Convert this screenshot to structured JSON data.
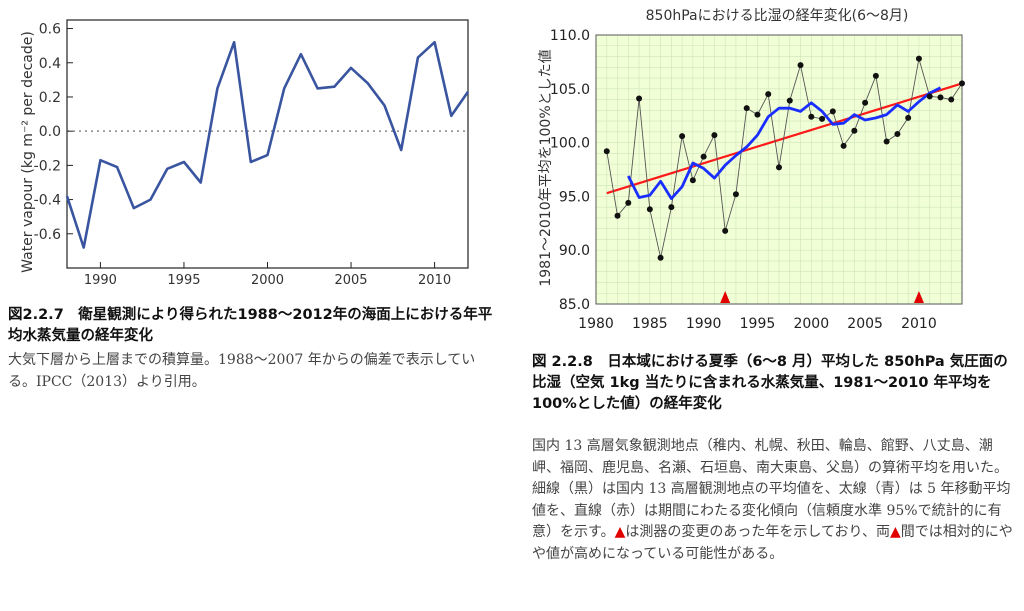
{
  "left_caption": {
    "title": "図2.2.7　衛星観測により得られた1988～2012年の海面上における年平均水蒸気量の経年変化",
    "body": "大気下層から上層までの積算量。1988～2007 年からの偏差で表示している。IPCC（2013）より引用。"
  },
  "right_caption": {
    "title": "図 2.2.8　日本域における夏季（6～8 月）平均した 850hPa 気圧面の比湿（空気 1kg 当たりに含まれる水蒸気量、1981～2010 年平均を 100%とした値）の経年変化",
    "body_part1": "国内 13 高層気象観測地点（稚内、札幌、秋田、輪島、館野、八丈島、潮岬、福岡、鹿児島、名瀬、石垣島、南大東島、父島）の算術平均を用いた。細線（黒）は国内 13 高層観測地点の平均値を、太線（青）は 5 年移動平均値を、直線（赤）は期間にわたる変化傾向（信頼度水準 95%で統計的に有意）を示す。",
    "marker_symbol": "▲",
    "body_part2": "は測器の変更のあった年を示しており、両",
    "body_part3": "間では相対的にやや値が高めになっている可能性がある。"
  },
  "chart_data": [
    {
      "type": "line",
      "title": "",
      "xlabel": "",
      "ylabel": "Water vapour (kg m⁻² per decade)",
      "xlim": [
        1988,
        2012
      ],
      "ylim": [
        -0.8,
        0.65
      ],
      "xticks": [
        1990,
        1995,
        2000,
        2005,
        2010
      ],
      "yticks": [
        -0.6,
        -0.4,
        -0.2,
        0.0,
        0.2,
        0.4,
        0.6
      ],
      "ytick_labels": [
        "-0.6",
        "-0.4",
        "-0.2",
        "0.0",
        "0.2",
        "0.4",
        "0.6"
      ],
      "reference_line": 0.0,
      "grid": false,
      "line_color": "#3a55a0",
      "series": [
        {
          "x": [
            1988,
            1989,
            1990,
            1991,
            1992,
            1993,
            1994,
            1995,
            1996,
            1997,
            1998,
            1999,
            2000,
            2001,
            2002,
            2003,
            2004,
            2005,
            2006,
            2007,
            2008,
            2009,
            2010,
            2011,
            2012
          ],
          "values": [
            -0.38,
            -0.68,
            -0.17,
            -0.21,
            -0.45,
            -0.4,
            -0.22,
            -0.18,
            -0.3,
            0.25,
            0.52,
            -0.18,
            -0.14,
            0.25,
            0.45,
            0.25,
            0.26,
            0.37,
            0.28,
            0.15,
            -0.11,
            0.43,
            0.52,
            0.09,
            0.23
          ]
        }
      ]
    },
    {
      "type": "line",
      "title": "850hPaにおける比湿の経年変化(6～8月)",
      "xlabel": "",
      "ylabel": "1981～2010年平均を100%とした値",
      "xlim": [
        1980,
        2014
      ],
      "ylim": [
        85,
        110
      ],
      "xticks": [
        1980,
        1985,
        1990,
        1995,
        2000,
        2005,
        2010
      ],
      "yticks": [
        85,
        90,
        95,
        100,
        105,
        110
      ],
      "ytick_labels": [
        "85.0",
        "90.0",
        "95.0",
        "100.0",
        "105.0",
        "110.0"
      ],
      "grid": true,
      "instrument_change_years": [
        1992,
        2010
      ],
      "series": [
        {
          "kind": "annual",
          "color": "#333333",
          "x": [
            1981,
            1982,
            1983,
            1984,
            1985,
            1986,
            1987,
            1988,
            1989,
            1990,
            1991,
            1992,
            1993,
            1994,
            1995,
            1996,
            1997,
            1998,
            1999,
            2000,
            2001,
            2002,
            2003,
            2004,
            2005,
            2006,
            2007,
            2008,
            2009,
            2010,
            2011,
            2012,
            2013,
            2014
          ],
          "values": [
            99.2,
            93.2,
            94.4,
            104.1,
            93.8,
            89.3,
            94.0,
            100.6,
            96.5,
            98.7,
            100.7,
            91.8,
            95.2,
            103.2,
            102.6,
            104.5,
            97.7,
            103.9,
            107.2,
            102.4,
            102.2,
            102.9,
            99.7,
            101.1,
            103.7,
            106.2,
            100.1,
            100.8,
            102.3,
            107.8,
            104.3,
            104.2,
            104.0,
            105.5
          ]
        },
        {
          "kind": "5-year moving average",
          "color": "#1a2fff",
          "x": [
            1983,
            1984,
            1985,
            1986,
            1987,
            1988,
            1989,
            1990,
            1991,
            1992,
            1993,
            1994,
            1995,
            1996,
            1997,
            1998,
            1999,
            2000,
            2001,
            2002,
            2003,
            2004,
            2005,
            2006,
            2007,
            2008,
            2009,
            2010,
            2011,
            2012
          ],
          "values": [
            96.9,
            94.9,
            95.1,
            96.4,
            94.8,
            95.9,
            98.1,
            97.6,
            96.7,
            97.9,
            98.8,
            99.6,
            100.7,
            102.4,
            103.2,
            103.2,
            102.9,
            103.7,
            102.9,
            101.7,
            101.8,
            102.6,
            102.1,
            102.3,
            102.6,
            103.5,
            102.9,
            103.8,
            104.6,
            105.1
          ]
        },
        {
          "kind": "trend",
          "color": "#ff1a1a",
          "x": [
            1981,
            2014
          ],
          "values": [
            95.3,
            105.5
          ]
        }
      ]
    }
  ]
}
